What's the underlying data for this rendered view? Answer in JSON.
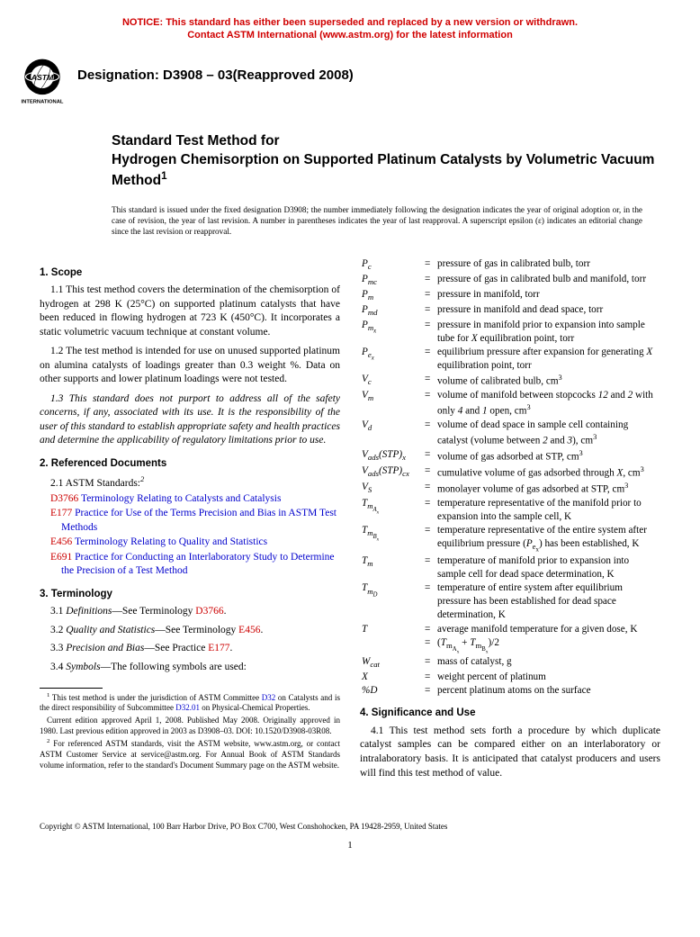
{
  "notice": {
    "line1": "NOTICE: This standard has either been superseded and replaced by a new version or withdrawn.",
    "line2": "Contact ASTM International (www.astm.org) for the latest information",
    "color": "#d00000"
  },
  "logo": {
    "text_top": "ASTM",
    "text_bottom": "INTERNATIONAL"
  },
  "designation": "Designation: D3908 – 03(Reapproved 2008)",
  "title": {
    "line1": "Standard Test Method for",
    "line2": "Hydrogen Chemisorption on Supported Platinum Catalysts by Volumetric Vacuum Method",
    "super": "1"
  },
  "issue_note": "This standard is issued under the fixed designation D3908; the number immediately following the designation indicates the year of original adoption or, in the case of revision, the year of last revision. A number in parentheses indicates the year of last reapproval. A superscript epsilon (ε) indicates an editorial change since the last revision or reapproval.",
  "sec1": {
    "head": "1. Scope",
    "p1": "1.1 This test method covers the determination of the chemisorption of hydrogen at 298 K (25°C) on supported platinum catalysts that have been reduced in flowing hydrogen at 723 K (450°C). It incorporates a static volumetric vacuum technique at constant volume.",
    "p2": "1.2 The test method is intended for use on unused supported platinum on alumina catalysts of loadings greater than 0.3 weight %. Data on other supports and lower platinum loadings were not tested.",
    "p3": "1.3 This standard does not purport to address all of the safety concerns, if any, associated with its use. It is the responsibility of the user of this standard to establish appropriate safety and health practices and determine the applicability of regulatory limitations prior to use."
  },
  "sec2": {
    "head": "2. Referenced Documents",
    "sub": "2.1 ASTM Standards:",
    "sup": "2",
    "refs": [
      {
        "code": "D3766",
        "txt": " Terminology Relating to Catalysts and Catalysis"
      },
      {
        "code": "E177",
        "txt": " Practice for Use of the Terms Precision and Bias in ASTM Test Methods"
      },
      {
        "code": "E456",
        "txt": " Terminology Relating to Quality and Statistics"
      },
      {
        "code": "E691",
        "txt": " Practice for Conducting an Interlaboratory Study to Determine the Precision of a Test Method"
      }
    ]
  },
  "sec3": {
    "head": "3. Terminology",
    "items": [
      {
        "pre": "3.1 ",
        "it": "Definitions",
        "mid": "—See Terminology ",
        "ref": "D3766",
        "post": "."
      },
      {
        "pre": "3.2 ",
        "it": "Quality and Statistics",
        "mid": "—See Terminology ",
        "ref": "E456",
        "post": "."
      },
      {
        "pre": "3.3 ",
        "it": "Precision and Bias",
        "mid": "—See Practice ",
        "ref": "E177",
        "post": "."
      },
      {
        "pre": "3.4 ",
        "it": "Symbols",
        "mid": "—The following symbols are used:",
        "ref": "",
        "post": ""
      }
    ]
  },
  "footnotes": {
    "f1a": " This test method is under the jurisdiction of ASTM Committee ",
    "f1b": "D32",
    "f1c": " on Catalysts and is the direct responsibility of Subcommittee ",
    "f1d": "D32.01",
    "f1e": " on Physical-Chemical Properties.",
    "f1f": "Current edition approved April 1, 2008. Published May 2008. Originally approved in 1980. Last previous edition approved in 2003 as D3908–03. DOI: 10.1520/D3908-03R08.",
    "f2": " For referenced ASTM standards, visit the ASTM website, www.astm.org, or contact ASTM Customer Service at service@astm.org. For Annual Book of ASTM Standards volume information, refer to the standard's Document Summary page on the ASTM website."
  },
  "symbols": [
    {
      "s": "P<sub>c</sub>",
      "d": "pressure of gas in calibrated bulb, torr"
    },
    {
      "s": "P<sub>mc</sub>",
      "d": "pressure of gas in calibrated bulb and manifold, torr"
    },
    {
      "s": "P<sub>m</sub>",
      "d": "pressure in manifold, torr"
    },
    {
      "s": "P<sub>md</sub>",
      "d": "pressure in manifold and dead space, torr"
    },
    {
      "s": "P<sub>m<sub>x</sub></sub>",
      "d": "pressure in manifold prior to expansion into sample tube for <i>X</i> equilibration point, torr"
    },
    {
      "s": "P<sub>e<sub>x</sub></sub>",
      "d": "equilibrium pressure after expansion for generating <i>X</i> equilibration point, torr"
    },
    {
      "s": "V<sub>c</sub>",
      "d": "volume of calibrated bulb, cm<sup>3</sup>"
    },
    {
      "s": "V<sub>m</sub>",
      "d": "volume of manifold between stopcocks <i>12</i> and <i>2</i> with only <i>4</i> and <i>1</i> open, cm<sup>3</sup>"
    },
    {
      "s": "V<sub>d</sub>",
      "d": "volume of dead space in sample cell containing catalyst (volume between <i>2</i> and <i>3</i>), cm<sup>3</sup>"
    },
    {
      "s": "V<sub>ads</sub>(STP)<sub><i>x</i></sub>",
      "d": "volume of gas adsorbed at STP, cm<sup>3</sup>"
    },
    {
      "s": "V<sub>ads</sub>(STP)<sub><i>cx</i></sub>",
      "d": "cumulative volume of gas adsorbed through <i>X</i>, cm<sup>3</sup>"
    },
    {
      "s": "V<sub>S</sub>",
      "d": "monolayer volume of gas adsorbed at STP, cm<sup>3</sup>"
    },
    {
      "s": "T<sub>m<sub>A<sub>x</sub></sub></sub>",
      "d": "temperature representative of the manifold prior to expansion into the sample cell, K"
    },
    {
      "s": "T<sub>m<sub>B<sub>x</sub></sub></sub>",
      "d": "temperature representative of the entire system after equilibrium pressure (<i>P</i><sub>e<sub>x</sub></sub>) has been established, K"
    },
    {
      "s": "T<sub>m</sub>",
      "d": "temperature of manifold prior to expansion into sample cell for dead space determination, K"
    },
    {
      "s": "T<sub>m<sub>D</sub></sub>",
      "d": "temperature of entire system after equilibrium pressure has been established for dead space determination, K"
    },
    {
      "s": "T",
      "d": "average manifold temperature for a given dose, K"
    },
    {
      "s": "",
      "d": "(<i>T</i><sub>m<sub>A<sub>x</sub></sub></sub> + <i>T</i><sub>m<sub>B<sub>x</sub></sub></sub>)/2"
    },
    {
      "s": "W<sub>cat</sub>",
      "d": "mass of catalyst, g"
    },
    {
      "s": "X",
      "d": "weight percent of platinum"
    },
    {
      "s": "%D",
      "d": "percent platinum atoms on the surface"
    }
  ],
  "sec4": {
    "head": "4. Significance and Use",
    "p1": "4.1 This test method sets forth a procedure by which duplicate catalyst samples can be compared either on an interlaboratory or intralaboratory basis. It is anticipated that catalyst producers and users will find this test method of value."
  },
  "copyright": "Copyright © ASTM International, 100 Barr Harbor Drive, PO Box C700, West Conshohocken, PA 19428-2959, United States",
  "page_num": "1",
  "colors": {
    "red": "#cc0000",
    "blue": "#0000cc",
    "notice": "#d00000"
  }
}
